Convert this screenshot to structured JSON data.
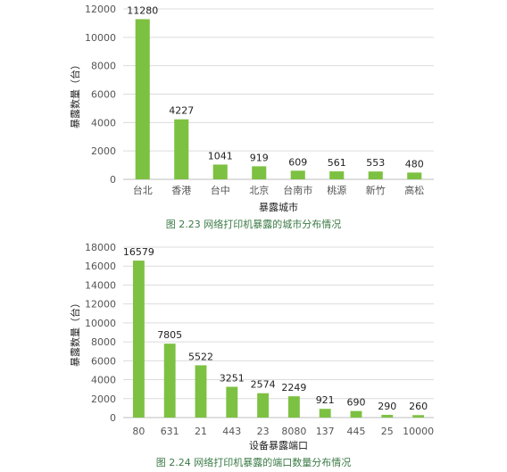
{
  "chart_data": [
    {
      "type": "bar",
      "categories": [
        "台北",
        "香港",
        "台中",
        "北京",
        "台南市",
        "桃源",
        "新竹",
        "高松"
      ],
      "values": [
        11280,
        4227,
        1041,
        919,
        609,
        561,
        553,
        480
      ],
      "value_labels": [
        "11280",
        "4227",
        "1041",
        "919",
        "609",
        "561",
        "553",
        "480"
      ],
      "y_ticks": [
        "0",
        "2000",
        "4000",
        "6000",
        "8000",
        "10000",
        "12000"
      ],
      "ylim": [
        0,
        12000
      ],
      "xlabel": "暴露城市",
      "ylabel": "暴露数量（台）",
      "caption": "图 2.23  网络打印机暴露的城市分布情况",
      "bar_color": "#7dc142",
      "grid": true
    },
    {
      "type": "bar",
      "categories": [
        "80",
        "631",
        "21",
        "443",
        "23",
        "8080",
        "137",
        "445",
        "25",
        "10000"
      ],
      "values": [
        16579,
        7805,
        5522,
        3251,
        2574,
        2249,
        921,
        690,
        290,
        260
      ],
      "value_labels": [
        "16579",
        "7805",
        "5522",
        "3251",
        "2574",
        "2249",
        "921",
        "690",
        "290",
        "260"
      ],
      "y_ticks": [
        "0",
        "2000",
        "4000",
        "6000",
        "8000",
        "10000",
        "12000",
        "14000",
        "16000",
        "18000"
      ],
      "ylim": [
        0,
        18000
      ],
      "xlabel": "设备暴露端口",
      "ylabel": "暴露数量（台）",
      "caption": "图 2.24  网络打印机暴露的端口数量分布情况",
      "bar_color": "#7dc142",
      "grid": true
    }
  ]
}
